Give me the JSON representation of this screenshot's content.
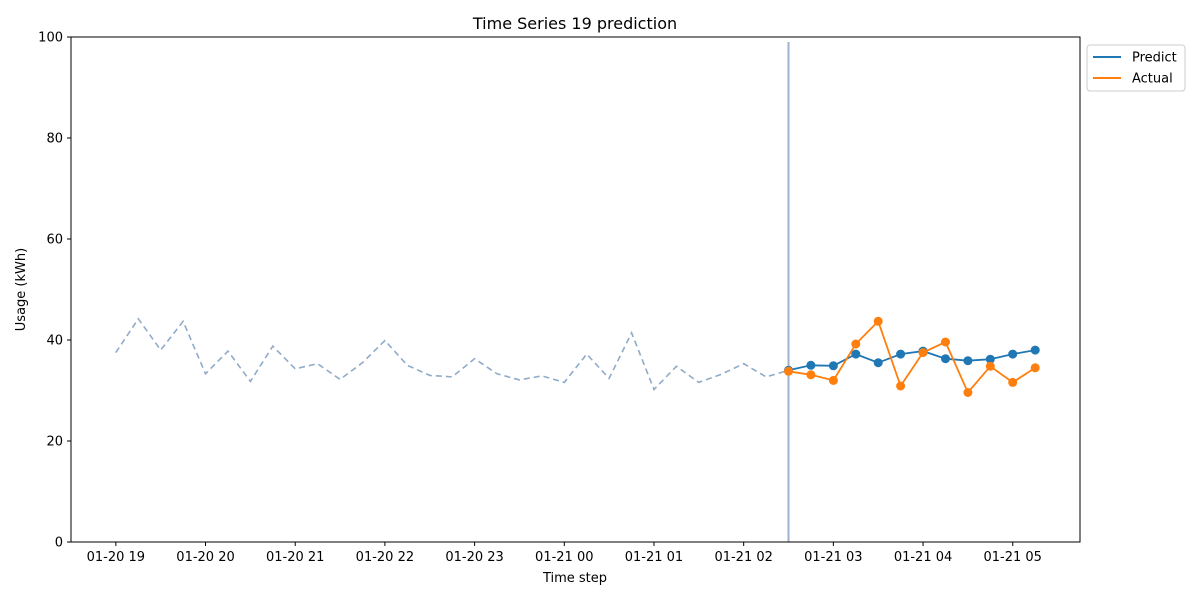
{
  "chart_data": {
    "type": "line",
    "title": "Time Series 19 prediction",
    "xlabel": "Time step",
    "ylabel": "Usage (kWh)",
    "ylim": [
      0,
      100
    ],
    "y_ticks": [
      0,
      20,
      40,
      60,
      80,
      100
    ],
    "x_tick_labels": [
      "01-20 19",
      "01-20 20",
      "01-20 21",
      "01-20 22",
      "01-20 23",
      "01-21 00",
      "01-21 01",
      "01-21 02",
      "01-21 03",
      "01-21 04",
      "01-21 05"
    ],
    "x_tick_times": [
      "01-20 19:00",
      "01-20 20:00",
      "01-20 21:00",
      "01-20 22:00",
      "01-20 23:00",
      "01-21 00:00",
      "01-21 01:00",
      "01-21 02:00",
      "01-21 03:00",
      "01-21 04:00",
      "01-21 05:00"
    ],
    "x_range": [
      "01-20 18:30",
      "01-21 05:45"
    ],
    "grid": false,
    "legend_position": "outside top-right",
    "forecast_start": "01-21 02:30",
    "history": {
      "style": "dashed",
      "color": "#8fabc9",
      "x": [
        "01-20 19:00",
        "01-20 19:15",
        "01-20 19:30",
        "01-20 19:45",
        "01-20 20:00",
        "01-20 20:15",
        "01-20 20:30",
        "01-20 20:45",
        "01-20 21:00",
        "01-20 21:15",
        "01-20 21:30",
        "01-20 21:45",
        "01-20 22:00",
        "01-20 22:15",
        "01-20 22:30",
        "01-20 22:45",
        "01-20 23:00",
        "01-20 23:15",
        "01-20 23:30",
        "01-20 23:45",
        "01-21 00:00",
        "01-21 00:15",
        "01-21 00:30",
        "01-21 00:45",
        "01-21 01:00",
        "01-21 01:15",
        "01-21 01:30",
        "01-21 01:45",
        "01-21 02:00",
        "01-21 02:15",
        "01-21 02:30"
      ],
      "values": [
        37.5,
        44.2,
        38.0,
        43.7,
        33.3,
        37.8,
        31.8,
        38.8,
        34.3,
        35.3,
        32.2,
        35.5,
        39.9,
        35.0,
        33.0,
        32.7,
        36.3,
        33.3,
        32.1,
        32.9,
        31.6,
        37.2,
        32.4,
        41.4,
        30.2,
        34.8,
        31.6,
        33.2,
        35.3,
        32.7,
        34.0
      ]
    },
    "forecast_x": [
      "01-21 02:30",
      "01-21 02:45",
      "01-21 03:00",
      "01-21 03:15",
      "01-21 03:30",
      "01-21 03:45",
      "01-21 04:00",
      "01-21 04:15",
      "01-21 04:30",
      "01-21 04:45",
      "01-21 05:00",
      "01-21 05:15"
    ],
    "series": [
      {
        "name": "Predict",
        "color": "#1f77b4",
        "values": [
          34.0,
          35.0,
          34.9,
          37.2,
          35.5,
          37.2,
          37.8,
          36.3,
          35.9,
          36.2,
          37.2,
          38.0
        ]
      },
      {
        "name": "Actual",
        "color": "#ff7f0e",
        "values": [
          33.8,
          33.1,
          32.0,
          39.2,
          43.7,
          30.9,
          37.5,
          39.6,
          29.6,
          34.8,
          31.6,
          34.5
        ]
      }
    ]
  }
}
